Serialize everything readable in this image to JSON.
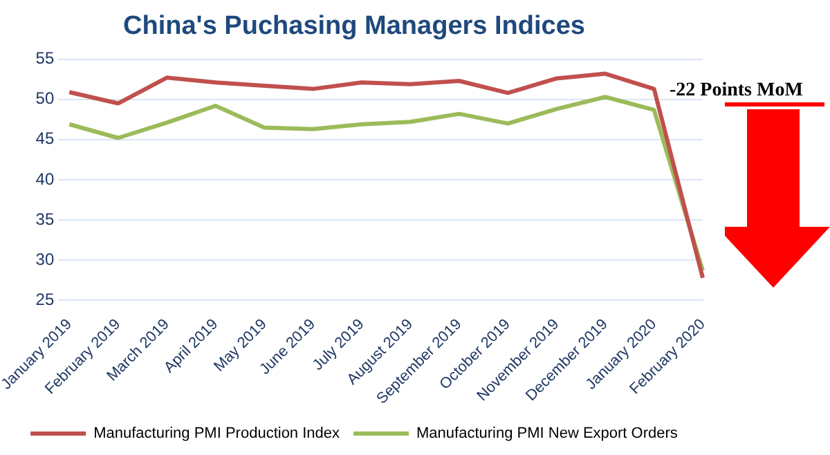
{
  "chart_data": {
    "type": "line",
    "title": "China's Puchasing Managers Indices",
    "categories": [
      "January 2019",
      "February 2019",
      "March 2019",
      "April 2019",
      "May 2019",
      "June 2019",
      "July 2019",
      "August 2019",
      "September 2019",
      "October 2019",
      "November 2019",
      "December 2019",
      "January 2020",
      "February 2020"
    ],
    "series": [
      {
        "name": "Manufacturing PMI Production Index",
        "color": "#c0504d",
        "values": [
          50.9,
          49.5,
          52.7,
          52.1,
          51.7,
          51.3,
          52.1,
          51.9,
          52.3,
          50.8,
          52.6,
          53.2,
          51.3,
          27.8
        ]
      },
      {
        "name": "Manufacturing PMI New Export Orders",
        "color": "#9bbb59",
        "values": [
          46.9,
          45.2,
          47.1,
          49.2,
          46.5,
          46.3,
          46.9,
          47.2,
          48.2,
          47.0,
          48.8,
          50.3,
          48.7,
          28.7
        ]
      }
    ],
    "ylim": [
      25,
      55
    ],
    "yticks": [
      25,
      30,
      35,
      40,
      45,
      50,
      55
    ],
    "grid": "y",
    "legend": "bottom",
    "marker": "none",
    "line_style": "solid",
    "annotations": [
      "-22 Points MoM"
    ]
  }
}
